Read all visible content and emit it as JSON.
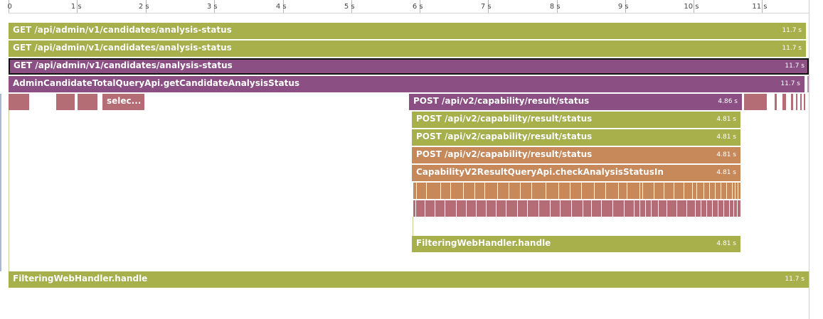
{
  "ruler": {
    "ticks": [
      "0",
      "1 s",
      "2 s",
      "3 s",
      "4 s",
      "5 s",
      "6 s",
      "7 s",
      "8 s",
      "9 s",
      "10 s",
      "11 s"
    ]
  },
  "colors": {
    "olive": "#a7b04b",
    "purple": "#8b4f83",
    "orange": "#c8895a",
    "rose": "#b46d74"
  },
  "spans": {
    "get1": {
      "label": "GET /api/admin/v1/candidates/analysis-status",
      "duration": "11.7 s"
    },
    "get2": {
      "label": "GET /api/admin/v1/candidates/analysis-status",
      "duration": "11.7 s"
    },
    "get3": {
      "label": "GET /api/admin/v1/candidates/analysis-status",
      "duration": "11.7 s"
    },
    "admin": {
      "label": "AdminCandidateTotalQueryApi.getCandidateAnalysisStatus",
      "duration": "11.7 s"
    },
    "select": {
      "label": "selec..."
    },
    "post1": {
      "label": "POST /api/v2/capability/result/status",
      "duration": "4.86 s"
    },
    "post2": {
      "label": "POST /api/v2/capability/result/status",
      "duration": "4.81 s"
    },
    "post3": {
      "label": "POST /api/v2/capability/result/status",
      "duration": "4.81 s"
    },
    "post4": {
      "label": "POST /api/v2/capability/result/status",
      "duration": "4.81 s"
    },
    "capability": {
      "label": "CapabilityV2ResultQueryApi.checkAnalysisStatusIn",
      "duration": "4.81 s"
    },
    "filter_inner": {
      "label": "FilteringWebHandler.handle",
      "duration": "4.81 s"
    },
    "filter_outer": {
      "label": "FilteringWebHandler.handle",
      "duration": "11.7 s"
    }
  }
}
